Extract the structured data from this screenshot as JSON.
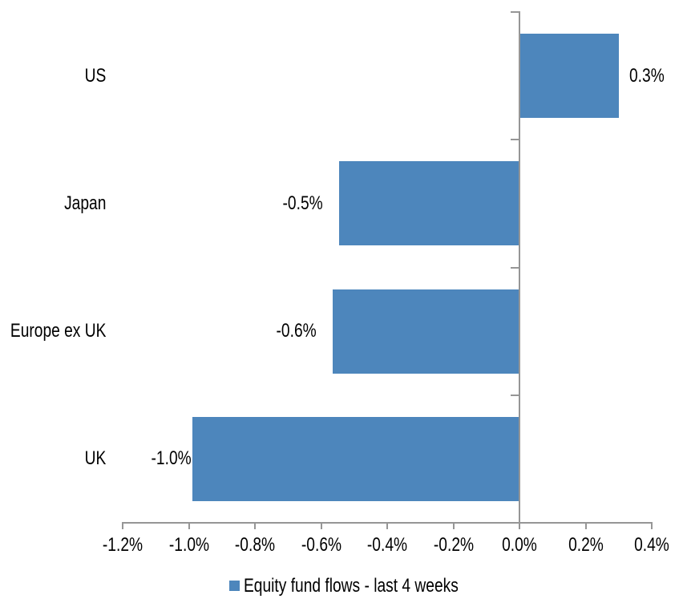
{
  "chart_data": {
    "type": "bar",
    "orientation": "horizontal",
    "title": "",
    "xlabel": "",
    "ylabel": "",
    "categories": [
      "US",
      "Japan",
      "Europe ex UK",
      "UK"
    ],
    "series": [
      {
        "name": "Equity fund flows - last 4 weeks",
        "values": [
          0.3,
          -0.5,
          -0.6,
          -1.0
        ]
      }
    ],
    "data_labels": [
      "0.3%",
      "-0.5%",
      "-0.6%",
      "-1.0%"
    ],
    "values_rendered_pct": [
      0.3,
      -0.545,
      -0.565,
      -0.99
    ],
    "xlim": [
      -1.2,
      0.4
    ],
    "x_tick_values": [
      -1.2,
      -1.0,
      -0.8,
      -0.6,
      -0.4,
      -0.2,
      0.0,
      0.2,
      0.4
    ],
    "x_tick_labels": [
      "-1.2%",
      "-1.0%",
      "-0.8%",
      "-0.6%",
      "-0.4%",
      "-0.2%",
      "0.0%",
      "0.2%",
      "0.4%"
    ],
    "grid": false,
    "legend": {
      "position": "bottom",
      "marker": "square-icon",
      "label": "Equity fund flows - last 4 weeks"
    },
    "colors": {
      "bar": "#4D86BC",
      "axis": "#969696",
      "text": "#000000",
      "background": "#FFFFFF"
    }
  }
}
